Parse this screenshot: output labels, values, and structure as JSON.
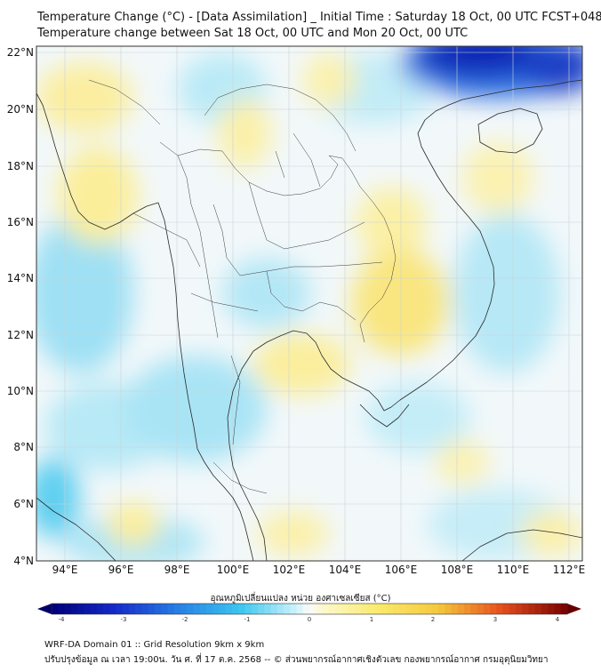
{
  "title_line1": "Temperature Change (°C) - [Data Assimilation] _ Initial Time : Saturday 18 Oct, 00 UTC FCST+048",
  "title_line2": "Temperature change between Sat 18 Oct, 00 UTC and Mon 20 Oct, 00 UTC",
  "lat_ticks": [
    "22°N",
    "20°N",
    "18°N",
    "16°N",
    "14°N",
    "12°N",
    "10°N",
    "8°N",
    "6°N",
    "4°N"
  ],
  "lon_ticks": [
    "94°E",
    "96°E",
    "98°E",
    "100°E",
    "102°E",
    "104°E",
    "106°E",
    "108°E",
    "110°E",
    "112°E"
  ],
  "colorbar": {
    "label": "อุณหภูมิเปลี่ยนแปลง หน่วย องศาเซลเซียส (°C)",
    "ticks": [
      "-4",
      "-3",
      "-2",
      "-1",
      "0",
      "1",
      "2",
      "3",
      "4"
    ]
  },
  "footer_line1": "WRF-DA Domain 01 :: Grid Resolution 9km x 9km",
  "footer_line2": "ปรับปรุงข้อมูล ณ เวลา 19:00น. วัน ศ. ที่ 17 ต.ค. 2568 -- © ส่วนพยากรณ์อากาศเชิงตัวเลข กองพยากรณ์อากาศ กรมอุตุนิยมวิทยา",
  "colors": {
    "cold_strong": "#0a1fb0",
    "cold": "#3cc8ee",
    "cool": "#bfeaf7",
    "neutral": "#f4f9fb",
    "warm": "#fbf0a0",
    "warm_strong": "#f7e35a"
  }
}
